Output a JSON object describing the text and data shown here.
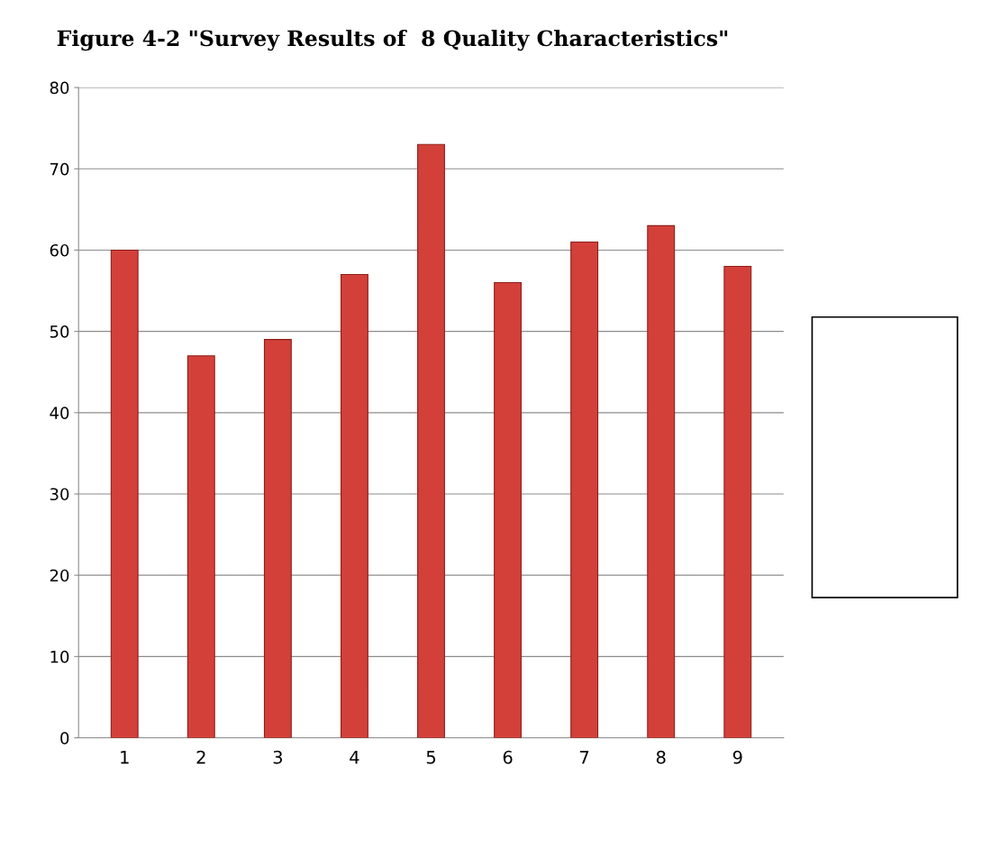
{
  "chart_data": {
    "type": "bar",
    "title": "Figure 4-2 \"Survey Results of  8 Quality Characteristics\"",
    "categories": [
      "1",
      "2",
      "3",
      "4",
      "5",
      "6",
      "7",
      "8",
      "9"
    ],
    "values": [
      60,
      47,
      49,
      57,
      73,
      56,
      61,
      63,
      58
    ],
    "color": "#d3403a",
    "ylim": [
      0,
      80
    ],
    "yticks": [
      0,
      10,
      20,
      30,
      40,
      50,
      60,
      70,
      80
    ],
    "grid": "y",
    "legend": false
  }
}
